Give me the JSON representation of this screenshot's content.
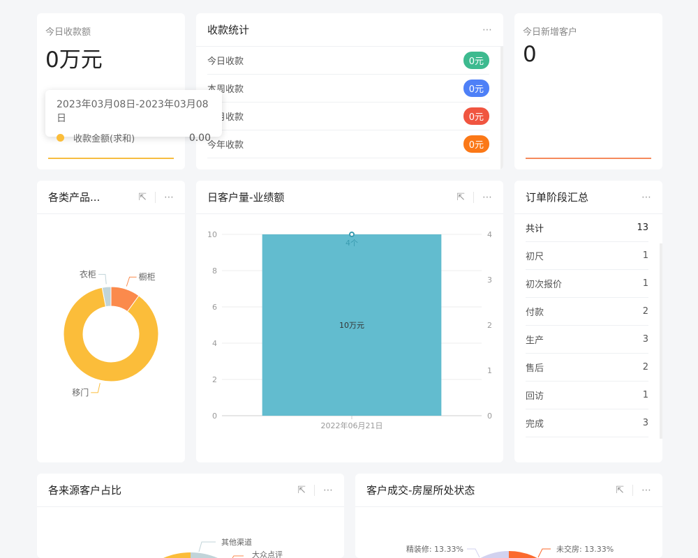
{
  "today_amount": {
    "label": "今日收款额",
    "value": "0万元",
    "accent": "#f6bd41"
  },
  "tooltip": {
    "range": "2023年03月08日-2023年03月08日",
    "series": "收款金额(求和)",
    "value": "0.00",
    "color": "#fbbd3a"
  },
  "collect_stats": {
    "title": "收款统计",
    "rows": [
      {
        "label": "今日收款",
        "value": "0元",
        "color": "#3dba8f"
      },
      {
        "label": "本周收款",
        "value": "0元",
        "color": "#4e80f7"
      },
      {
        "label": "本月收款",
        "value": "0元",
        "color": "#f05540"
      },
      {
        "label": "今年收款",
        "value": "0元",
        "color": "#fb7817"
      }
    ]
  },
  "new_customers": {
    "label": "今日新增客户",
    "value": "0",
    "accent": "#f58a5c"
  },
  "product_chart": {
    "title": "各类产品...",
    "chart_data": {
      "type": "pie",
      "donut": true,
      "categories": [
        "橱柜",
        "移门",
        "衣柜"
      ],
      "values": [
        10,
        87,
        3
      ],
      "colors": [
        "#fb8a4c",
        "#fbbd3a",
        "#c1d4d9"
      ]
    }
  },
  "daily_chart": {
    "title": "日客户量-业绩额",
    "chart_data": {
      "type": "bar",
      "categories": [
        "2022年06月21日"
      ],
      "series": [
        {
          "type": "bar",
          "axis": "left",
          "values": [
            10
          ],
          "label": "10万元",
          "color": "#62bccf"
        },
        {
          "type": "line",
          "axis": "right",
          "values": [
            4
          ],
          "label": "4个",
          "color": "#3a9bb0"
        }
      ],
      "ylim": [
        0,
        10
      ],
      "yticks": [
        "0",
        "2",
        "4",
        "6",
        "8",
        "10"
      ],
      "y2lim": [
        0,
        4
      ],
      "y2ticks": [
        "0",
        "1",
        "2",
        "3",
        "4"
      ],
      "grid": true
    }
  },
  "order_stages": {
    "title": "订单阶段汇总",
    "rows": [
      {
        "label": "共计",
        "value": "13"
      },
      {
        "label": "初尺",
        "value": "1"
      },
      {
        "label": "初次报价",
        "value": "1"
      },
      {
        "label": "付款",
        "value": "2"
      },
      {
        "label": "生产",
        "value": "3"
      },
      {
        "label": "售后",
        "value": "2"
      },
      {
        "label": "回访",
        "value": "1"
      },
      {
        "label": "完成",
        "value": "3"
      }
    ]
  },
  "source_chart": {
    "title": "各来源客户占比",
    "labels": [
      "其他渠道",
      "大众点评"
    ]
  },
  "house_chart": {
    "title": "客户成交-房屋所处状态",
    "labels": [
      "精装修: 13.33%",
      "未交房: 13.33%"
    ]
  },
  "icons": {
    "more": "⋯",
    "open": "⇱"
  }
}
